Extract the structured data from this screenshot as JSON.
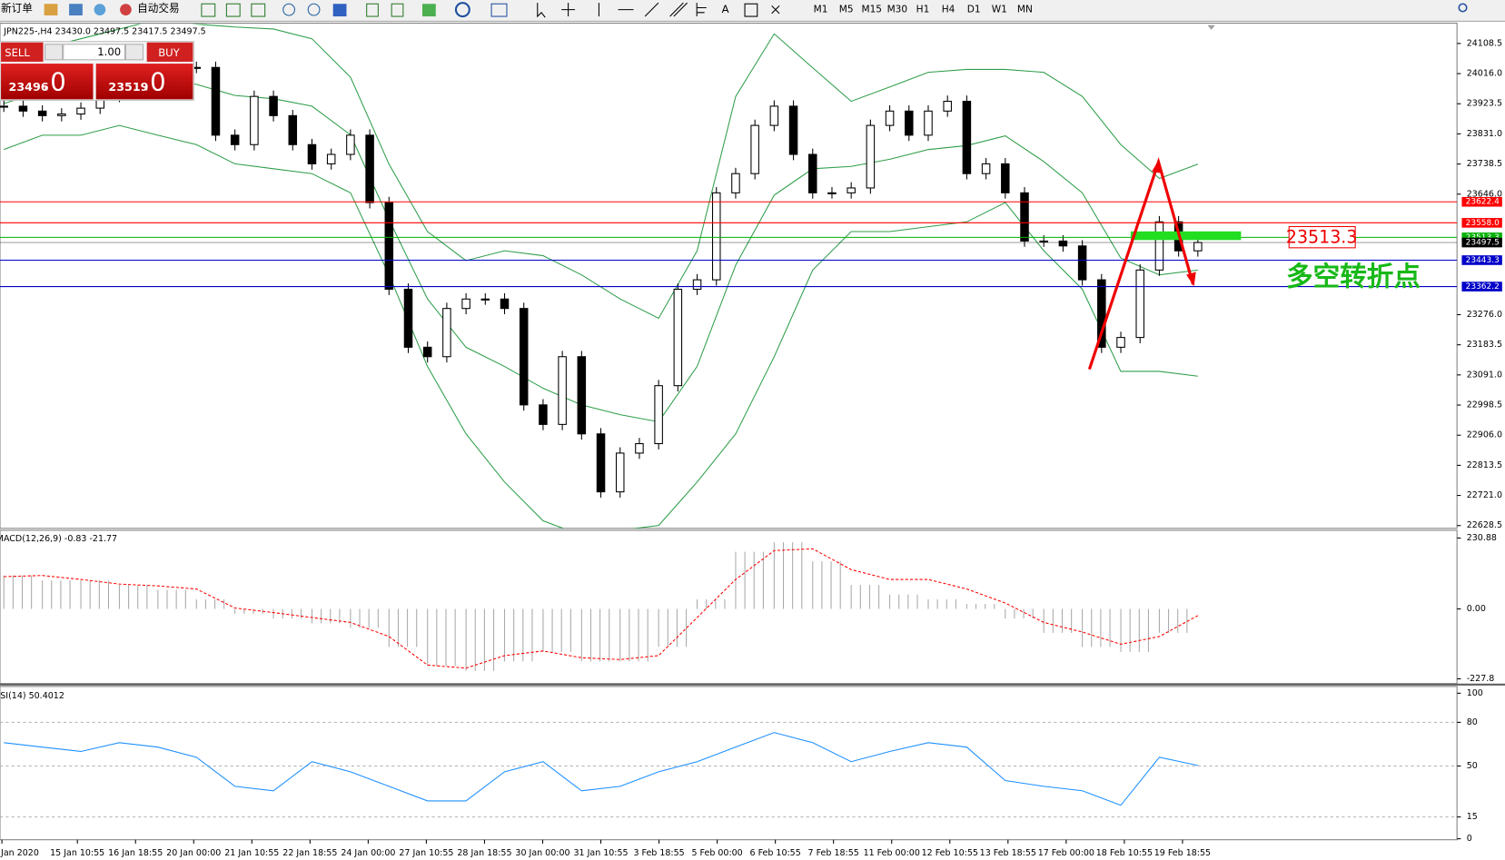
{
  "toolbar": {
    "new_order": "新订单",
    "auto_trading": "自动交易",
    "text_tool": "A",
    "periods": [
      "M1",
      "M5",
      "M15",
      "M30",
      "H1",
      "H4",
      "D1",
      "W1",
      "MN"
    ]
  },
  "trade_panel": {
    "sell": "SELL",
    "lots": "1.00",
    "buy": "BUY",
    "bid": "23496",
    "bid_point": ".0",
    "ask": "23519",
    "ask_point": ".0"
  },
  "annotations": {
    "price_box": "23513.3",
    "turning_point": "多空转折点"
  },
  "chart_data": {
    "type": "candlestick",
    "header": "JPN225-,H4 23430.0 23497.5 23417.5 23497.5",
    "ylim": [
      22620,
      24168
    ],
    "yticks": [
      24108.5,
      {
        "value": 24016,
        "label": "24016.0"
      },
      23923.5,
      {
        "value": 23831,
        "label": "23831.0"
      },
      23738.5,
      {
        "value": 23646,
        "label": "23646.0"
      },
      {
        "value": 23276,
        "label": "23276.0"
      },
      23183.5,
      {
        "value": 23091,
        "label": "23091.0"
      },
      22998.5,
      {
        "value": 22906,
        "label": "22906.0"
      },
      22813.5,
      {
        "value": 22721,
        "label": "22721.0"
      },
      22628.5
    ],
    "close": [
      23916,
      23901,
      23887,
      23892,
      23910,
      23946,
      23990,
      24005,
      24020,
      24035,
      24035,
      23827,
      23798,
      23946,
      23887,
      23798,
      23739,
      23768,
      23827,
      23620,
      23354,
      23176,
      23147,
      23295,
      23324,
      23324,
      23295,
      22999,
      22939,
      23147,
      22910,
      22732,
      22851,
      22880,
      23058,
      23354,
      23383,
      23650,
      23709,
      23857,
      23916,
      23768,
      23650,
      23650,
      23665,
      23857,
      23901,
      23827,
      23901,
      23931,
      23709,
      23739,
      23650,
      23502,
      23502,
      23487,
      23383,
      23176,
      23206,
      23413,
      23561,
      23472,
      23497.5
    ],
    "bollinger": {
      "color": "#2f9e4a",
      "upper": [
        24064,
        24094,
        24123,
        24153,
        24182,
        24168,
        24159,
        24153,
        24123,
        24005,
        23738,
        23531,
        23442,
        23472,
        23457,
        23398,
        23324,
        23265,
        23472,
        23946,
        24138,
        24034,
        23931,
        23975,
        24020,
        24029,
        24029,
        24020,
        23946,
        23798,
        23694,
        23738
      ],
      "middle": [
        23924,
        23961,
        23975,
        24005,
        24005,
        23983,
        23949,
        23939,
        23916,
        23828,
        23568,
        23324,
        23176,
        23117,
        23050,
        22999,
        22969,
        22947,
        23117,
        23428,
        23643,
        23724,
        23731,
        23753,
        23783,
        23795,
        23825,
        23746,
        23650,
        23450,
        23398,
        23413
      ],
      "lower": [
        23783,
        23827,
        23827,
        23857,
        23827,
        23798,
        23739,
        23724,
        23709,
        23650,
        23398,
        23117,
        22910,
        22762,
        22643,
        22599,
        22614,
        22629,
        22762,
        22910,
        23147,
        23413,
        23531,
        23531,
        23546,
        23561,
        23620,
        23472,
        23354,
        23102,
        23102,
        23087
      ]
    },
    "levels": [
      23622.4,
      {
        "value": 23558,
        "label": "23558.0"
      },
      23513.3,
      23497.5,
      23443.3,
      23362.2
    ],
    "level_colors": [
      "#ff0000",
      "#ff0000",
      "#00b000",
      "#000000",
      "#0000c8",
      "#0000c8"
    ],
    "x_labels": [
      "Jan 2020",
      "15 Jan 10:55",
      "16 Jan 18:55",
      "20 Jan 00:00",
      "21 Jan 10:55",
      "22 Jan 18:55",
      "24 Jan 00:00",
      "27 Jan 10:55",
      "28 Jan 18:55",
      "30 Jan 00:00",
      "31 Jan 10:55",
      "3 Feb 18:55",
      "5 Feb 00:00",
      "6 Feb 10:55",
      "7 Feb 18:55",
      "11 Feb 00:00",
      "12 Feb 10:55",
      "13 Feb 18:55",
      "17 Feb 00:00",
      "18 Feb 10:55",
      "19 Feb 18:55"
    ],
    "macd": {
      "label": "MACD(12,26,9) -0.83 -21.77",
      "ylim": [
        -240,
        253
      ],
      "yticks": [
        230.88,
        {
          "value": 0,
          "label": "0.00"
        },
        -227.8
      ],
      "histogram_color": "#a9a9a9",
      "signal_color": "#ff0000",
      "histogram": [
        109,
        93,
        93,
        78,
        62,
        31,
        -16,
        -31,
        -47,
        -62,
        -124,
        -186,
        -202,
        -171,
        -140,
        -171,
        -171,
        -124,
        31,
        186,
        217,
        155,
        78,
        47,
        31,
        16,
        -31,
        -78,
        -124,
        -140,
        -78,
        -0.83
      ],
      "signal": [
        105,
        109,
        96,
        81,
        75,
        65,
        3,
        -12,
        -28,
        -44,
        -90,
        -183,
        -193,
        -152,
        -137,
        -159,
        -165,
        -152,
        -28,
        96,
        190,
        196,
        128,
        96,
        96,
        65,
        19,
        -44,
        -75,
        -115,
        -90,
        -21.77
      ]
    },
    "rsi": {
      "label": "RSI(14) 50.4012",
      "ylim": [
        0,
        100
      ],
      "yticks": [
        100,
        80,
        50,
        15,
        0
      ],
      "grid": true,
      "color": "#1e90ff",
      "values": [
        66,
        63,
        60,
        66,
        63,
        56,
        36,
        33,
        53,
        46,
        36,
        26,
        26,
        46,
        53,
        33,
        36,
        46,
        53,
        63,
        73,
        66,
        53,
        60,
        66,
        63,
        40,
        36,
        33,
        23,
        56,
        50.4012
      ]
    }
  }
}
